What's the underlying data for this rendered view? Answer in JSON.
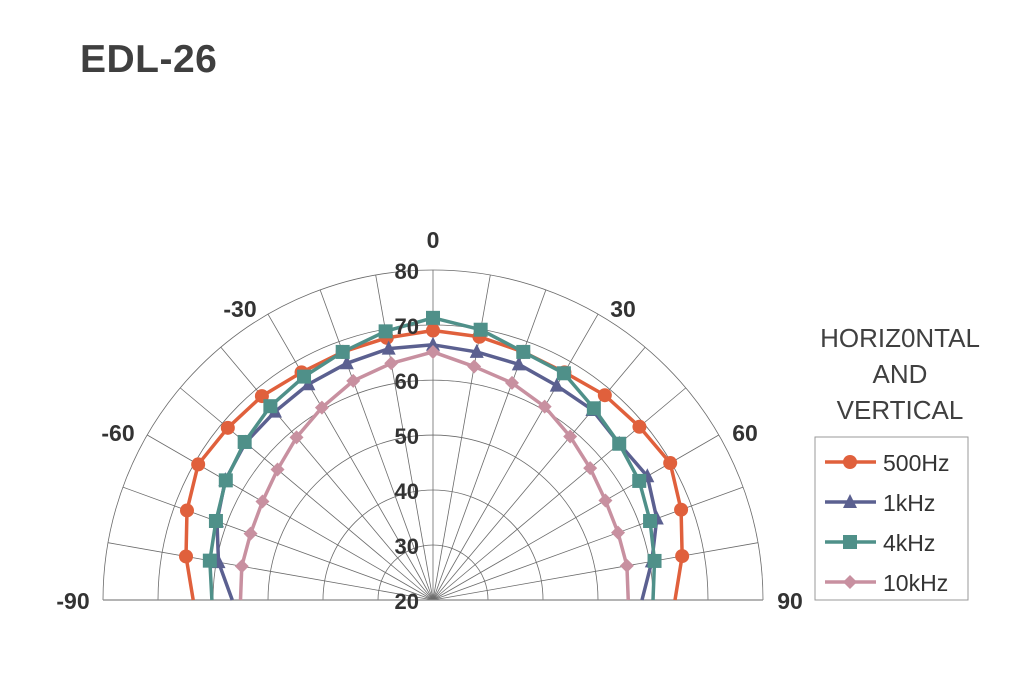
{
  "chart_data": {
    "type": "polar-line",
    "title": "EDL-26",
    "legend_title": [
      "HORIZ0NTAL",
      "AND",
      "VERTICAL"
    ],
    "legend_placement": "right",
    "angle_unit": "degrees",
    "angle_range": [
      -90,
      90
    ],
    "angle_tick_labels": [
      "-90",
      "-60",
      "-30",
      "0",
      "30",
      "60",
      "90"
    ],
    "angle_ticks": [
      -90,
      -60,
      -30,
      0,
      30,
      60,
      90
    ],
    "radial_range": [
      20,
      80
    ],
    "radial_ticks": [
      20,
      30,
      40,
      50,
      60,
      70,
      80
    ],
    "radial_tick_labels": [
      "20",
      "30",
      "40",
      "50",
      "60",
      "70",
      "80"
    ],
    "grid": true,
    "angles": [
      -90,
      -80,
      -70,
      -60,
      -50,
      -40,
      -30,
      -20,
      -10,
      0,
      10,
      20,
      30,
      40,
      50,
      60,
      70,
      80,
      90
    ],
    "series": [
      {
        "name": "500Hz",
        "color": "#e0603c",
        "marker": "circle",
        "values": [
          63.6,
          65.6,
          67.6,
          69.3,
          68.7,
          68.4,
          67.8,
          68.0,
          68.4,
          69.0,
          68.6,
          68.0,
          67.8,
          68.6,
          69.0,
          69.8,
          68.0,
          66.0,
          64.0
        ]
      },
      {
        "name": "1kHz",
        "color": "#5b6090",
        "marker": "triangle",
        "values": [
          56.5,
          59.6,
          61.8,
          63.6,
          64.5,
          64.7,
          65.3,
          65.8,
          66.4,
          66.4,
          65.8,
          65.6,
          65.0,
          65.1,
          64.2,
          65.0,
          63.3,
          60.4,
          58.0
        ]
      },
      {
        "name": "4kHz",
        "color": "#4f9089",
        "marker": "square",
        "values": [
          60.2,
          61.2,
          62.0,
          63.5,
          64.7,
          66.0,
          66.9,
          68.0,
          69.6,
          71.3,
          69.9,
          68.0,
          67.6,
          65.5,
          64.2,
          63.3,
          62.0,
          60.9,
          60.0
        ]
      },
      {
        "name": "10kHz",
        "color": "#c890a0",
        "marker": "diamond",
        "values": [
          55.0,
          55.3,
          55.3,
          55.8,
          56.9,
          58.6,
          60.4,
          62.4,
          63.7,
          65.1,
          63.1,
          62.0,
          60.6,
          58.8,
          57.3,
          56.2,
          55.8,
          55.8,
          55.5
        ]
      }
    ]
  }
}
